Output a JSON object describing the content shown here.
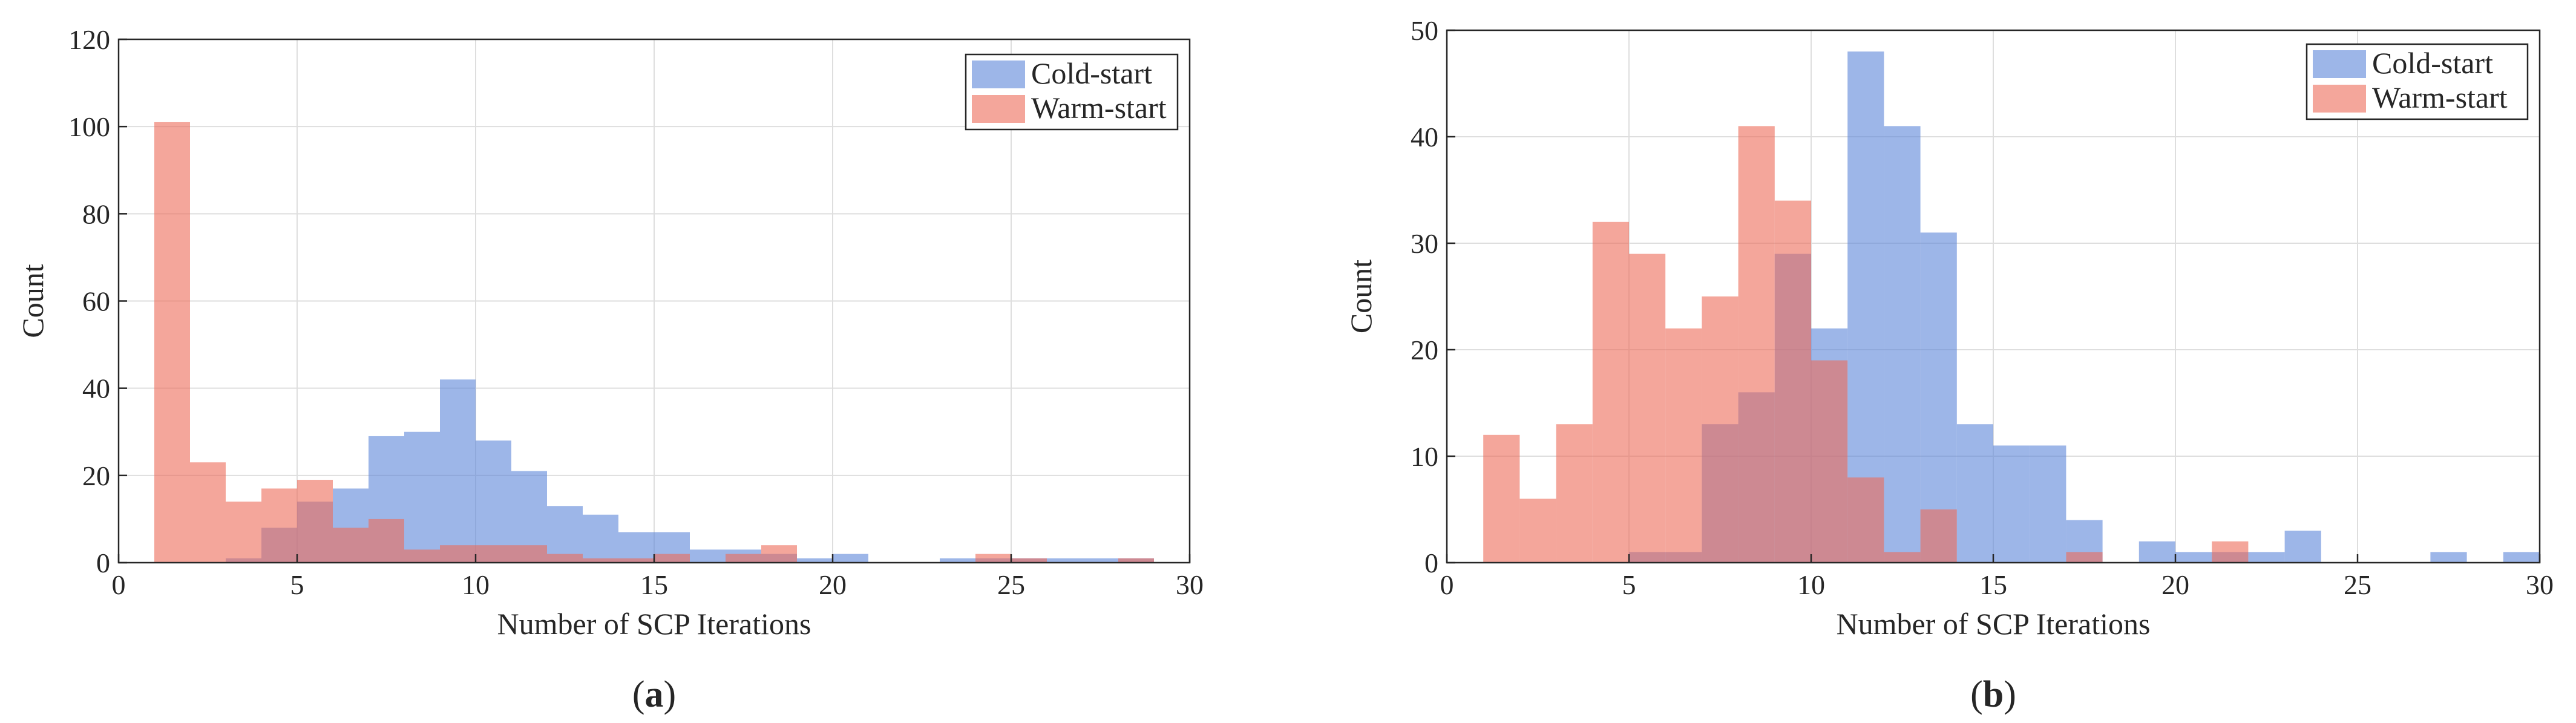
{
  "colors": {
    "cold_start": "#5b85d9",
    "warm_start": "#ec6a58",
    "overlap_hint": "#b56680",
    "grid": "#dedede",
    "axis": "#262626"
  },
  "chart_data": [
    {
      "type": "histogram",
      "panel_label": "a",
      "xlabel": "Number of SCP Iterations",
      "ylabel": "Count",
      "xlim": [
        0,
        30
      ],
      "ylim": [
        0,
        120
      ],
      "xticks": [
        0,
        5,
        10,
        15,
        20,
        25,
        30
      ],
      "yticks": [
        0,
        20,
        40,
        60,
        80,
        100,
        120
      ],
      "grid": true,
      "legend_position": "top-right",
      "bin_width": 1,
      "bin_starts": [
        1,
        2,
        3,
        4,
        5,
        6,
        7,
        8,
        9,
        10,
        11,
        12,
        13,
        14,
        15,
        16,
        17,
        18,
        19,
        20,
        21,
        22,
        23,
        24,
        25,
        26,
        27,
        28
      ],
      "series": [
        {
          "name": "Cold-start",
          "color_key": "cold_start",
          "values": [
            0,
            0,
            1,
            8,
            14,
            17,
            29,
            30,
            42,
            28,
            21,
            13,
            11,
            7,
            7,
            3,
            3,
            2,
            1,
            2,
            0,
            0,
            1,
            1,
            1,
            1,
            1,
            1
          ]
        },
        {
          "name": "Warm-start",
          "color_key": "warm_start",
          "values": [
            101,
            23,
            14,
            17,
            19,
            8,
            10,
            3,
            4,
            4,
            4,
            2,
            1,
            1,
            2,
            0,
            2,
            4,
            0,
            0,
            0,
            0,
            0,
            2,
            1,
            0,
            0,
            1
          ]
        }
      ]
    },
    {
      "type": "histogram",
      "panel_label": "b",
      "xlabel": "Number of SCP Iterations",
      "ylabel": "Count",
      "xlim": [
        0,
        30
      ],
      "ylim": [
        0,
        50
      ],
      "xticks": [
        0,
        5,
        10,
        15,
        20,
        25,
        30
      ],
      "yticks": [
        0,
        10,
        20,
        30,
        40,
        50
      ],
      "grid": true,
      "legend_position": "top-right",
      "bin_width": 1,
      "bin_starts": [
        1,
        2,
        3,
        4,
        5,
        6,
        7,
        8,
        9,
        10,
        11,
        12,
        13,
        14,
        15,
        16,
        17,
        18,
        19,
        20,
        21,
        22,
        23,
        24,
        25,
        26,
        27,
        28,
        29
      ],
      "series": [
        {
          "name": "Cold-start",
          "color_key": "cold_start",
          "values": [
            0,
            0,
            0,
            0,
            1,
            1,
            13,
            16,
            29,
            22,
            48,
            41,
            31,
            13,
            11,
            11,
            4,
            0,
            2,
            1,
            1,
            1,
            3,
            0,
            0,
            0,
            1,
            0,
            1
          ]
        },
        {
          "name": "Warm-start",
          "color_key": "warm_start",
          "values": [
            12,
            6,
            13,
            32,
            29,
            22,
            25,
            41,
            34,
            19,
            8,
            1,
            5,
            0,
            0,
            0,
            1,
            0,
            0,
            0,
            2,
            0,
            0,
            0,
            0,
            0,
            0,
            0,
            0
          ]
        }
      ]
    }
  ]
}
